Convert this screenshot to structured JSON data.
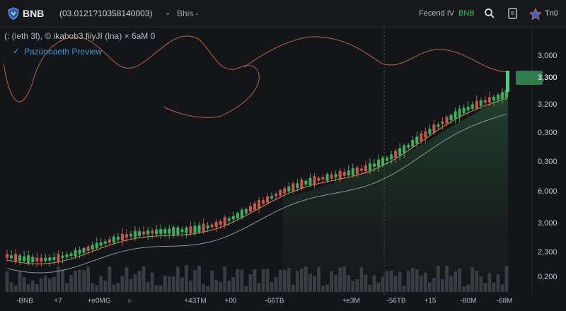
{
  "header": {
    "symbol": "BNB",
    "pair": "(03.0121?10358140003)",
    "mode": "Bhis -",
    "feed": "Fecend IV",
    "feed_symbol": "BNB",
    "user": "Tn0"
  },
  "legend": {
    "indicators": "(: (ieth 3l),  © ikabob3 fiiyJI (lna) × 6aM 0",
    "preview": "Pazünoaeth Preview"
  },
  "price_axis": [
    "3,000",
    "3,300",
    "3,200",
    "0,300",
    "0,300",
    "6,000",
    "3,000",
    "2,300",
    "0,200"
  ],
  "time_axis": [
    "-BNB",
    "+7",
    "+e0MG",
    "○",
    "+43TM",
    "+00",
    "-66TB",
    "+e3M",
    "-56TB",
    "+15",
    "-80M",
    "-68M"
  ]
}
